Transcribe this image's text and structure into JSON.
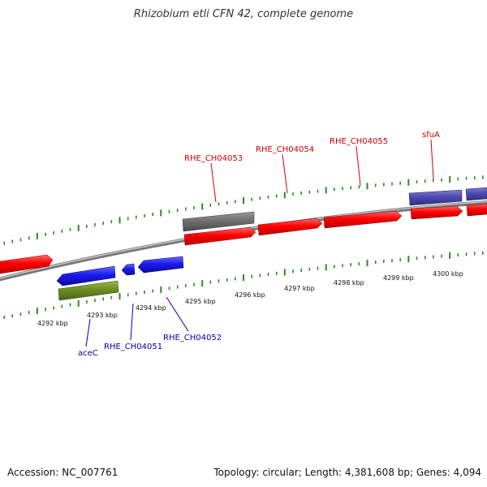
{
  "title": "Rhizobium etli CFN 42, complete genome",
  "footer": {
    "accession": "Accession: NC_007761",
    "topology": "Topology: circular; Length: 4,381,608 bp; Genes: 4,094"
  },
  "colors": {
    "background": "#ffffff",
    "backbone": "#8c8c8c",
    "ticks": "#2e8b22",
    "forward_gene": "#ff0000",
    "reverse_gene": "#1a1aee",
    "pseudo_gene": "#6e6e6e",
    "rna_gene": "#6b8e23",
    "slate_gene": "#4b4bb0",
    "forward_label": "#cc0000",
    "reverse_label": "#0000aa"
  },
  "scale": {
    "unit": "kbp",
    "kbp_ticks": [
      "4292 kbp",
      "4293 kbp",
      "4294 kbp",
      "4295 kbp",
      "4296 kbp",
      "4297 kbp",
      "4298 kbp",
      "4299 kbp",
      "4300 kbp"
    ]
  },
  "genes_forward": [
    {
      "label": "",
      "color": "forward_gene"
    },
    {
      "label": "",
      "color": "forward_gene"
    },
    {
      "label": "",
      "color": "forward_gene"
    },
    {
      "label": "",
      "color": "forward_gene"
    },
    {
      "label": "",
      "color": "forward_gene"
    },
    {
      "label": "",
      "color": "forward_gene"
    },
    {
      "label": "RHE_CH04053",
      "color": "pseudo_gene"
    },
    {
      "label": "",
      "color": "slate_gene"
    },
    {
      "label": "",
      "color": "slate_gene"
    }
  ],
  "genes_reverse": [
    {
      "label": "",
      "color": "reverse_gene"
    },
    {
      "label": "",
      "color": "reverse_gene"
    },
    {
      "label": "",
      "color": "reverse_gene"
    },
    {
      "label": "aceC",
      "color": "rna_gene"
    }
  ],
  "labels_forward": [
    "RHE_CH04053",
    "RHE_CH04054",
    "RHE_CH04055",
    "sfuA"
  ],
  "labels_reverse": [
    "aceC",
    "RHE_CH04051",
    "RHE_CH04052"
  ]
}
